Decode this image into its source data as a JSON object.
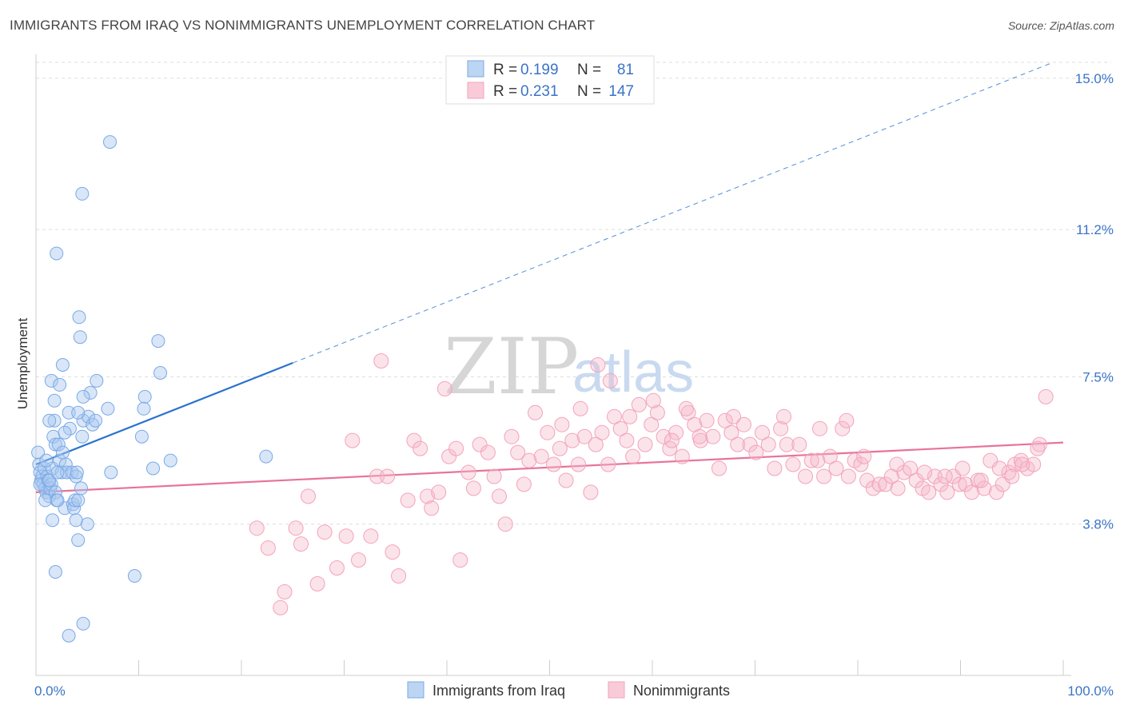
{
  "title": "IMMIGRANTS FROM IRAQ VS NONIMMIGRANTS UNEMPLOYMENT CORRELATION CHART",
  "source": "Source: ZipAtlas.com",
  "watermark": {
    "zip": "ZIP",
    "atlas": "atlas"
  },
  "legend": {
    "r_label": "R =",
    "n_label": "N =",
    "rows": [
      {
        "r": "0.199",
        "n": "81",
        "color": "#a9c8ef"
      },
      {
        "r": "0.231",
        "n": "147",
        "color": "#f6b9cb"
      }
    ]
  },
  "chart_data": {
    "type": "scatter",
    "title": "IMMIGRANTS FROM IRAQ VS NONIMMIGRANTS UNEMPLOYMENT CORRELATION CHART",
    "xlabel": "",
    "ylabel": "Unemployment",
    "xlim": [
      0,
      100
    ],
    "ylim": [
      0,
      15.4
    ],
    "x_tick_labels": {
      "min": "0.0%",
      "max": "100.0%"
    },
    "y_ticks": [
      {
        "value": 3.8,
        "label": "3.8%"
      },
      {
        "value": 7.5,
        "label": "7.5%"
      },
      {
        "value": 11.2,
        "label": "11.2%"
      },
      {
        "value": 15.0,
        "label": "15.0%"
      }
    ],
    "grid": true,
    "legend_position": "top-center",
    "series": [
      {
        "name": "Immigrants from Iraq",
        "color": "#7aa9e6",
        "line_color": "#2a72cf",
        "trend": {
          "x0": 0,
          "y0": 5.3,
          "x1": 25,
          "y1": 7.85,
          "extend_to_x": 100,
          "dashed_extension": true
        },
        "points": [
          [
            0.2,
            5.6
          ],
          [
            0.3,
            5.3
          ],
          [
            0.4,
            5.1
          ],
          [
            0.5,
            4.9
          ],
          [
            0.6,
            5.0
          ],
          [
            0.7,
            4.8
          ],
          [
            0.8,
            5.2
          ],
          [
            0.9,
            4.7
          ],
          [
            1.0,
            4.6
          ],
          [
            0.4,
            4.8
          ],
          [
            1.1,
            5.0
          ],
          [
            1.2,
            4.9
          ],
          [
            1.3,
            4.5
          ],
          [
            1.4,
            4.7
          ],
          [
            1.5,
            4.8
          ],
          [
            1.6,
            5.2
          ],
          [
            1.7,
            6.0
          ],
          [
            1.8,
            6.4
          ],
          [
            1.9,
            4.6
          ],
          [
            2.0,
            4.4
          ],
          [
            0.9,
            4.4
          ],
          [
            1.3,
            6.4
          ],
          [
            1.9,
            5.8
          ],
          [
            2.2,
            5.8
          ],
          [
            2.3,
            5.4
          ],
          [
            2.5,
            5.1
          ],
          [
            2.6,
            5.6
          ],
          [
            2.8,
            4.2
          ],
          [
            2.9,
            5.3
          ],
          [
            3.0,
            5.1
          ],
          [
            3.2,
            6.6
          ],
          [
            3.3,
            6.2
          ],
          [
            3.5,
            5.1
          ],
          [
            3.6,
            4.3
          ],
          [
            3.7,
            4.2
          ],
          [
            3.8,
            4.4
          ],
          [
            3.9,
            5.0
          ],
          [
            4.0,
            5.1
          ],
          [
            4.1,
            4.4
          ],
          [
            4.4,
            4.7
          ],
          [
            4.5,
            6.0
          ],
          [
            4.6,
            6.4
          ],
          [
            5.0,
            3.8
          ],
          [
            5.1,
            6.5
          ],
          [
            4.2,
            9.0
          ],
          [
            4.3,
            8.5
          ],
          [
            4.1,
            3.4
          ],
          [
            5.3,
            7.1
          ],
          [
            4.5,
            12.1
          ],
          [
            2.0,
            10.6
          ],
          [
            7.2,
            13.4
          ],
          [
            1.5,
            7.4
          ],
          [
            2.3,
            7.3
          ],
          [
            2.6,
            7.8
          ],
          [
            1.8,
            6.9
          ],
          [
            3.9,
            3.9
          ],
          [
            2.1,
            4.4
          ],
          [
            1.6,
            3.9
          ],
          [
            1.3,
            4.9
          ],
          [
            1.9,
            2.6
          ],
          [
            2.1,
            5.1
          ],
          [
            4.1,
            6.6
          ],
          [
            4.6,
            7.0
          ],
          [
            5.5,
            6.3
          ],
          [
            5.8,
            6.4
          ],
          [
            5.9,
            7.4
          ],
          [
            7.0,
            6.7
          ],
          [
            7.3,
            5.1
          ],
          [
            10.3,
            6.0
          ],
          [
            10.6,
            7.0
          ],
          [
            10.5,
            6.7
          ],
          [
            11.9,
            8.4
          ],
          [
            12.1,
            7.6
          ],
          [
            11.4,
            5.2
          ],
          [
            13.1,
            5.4
          ],
          [
            22.4,
            5.5
          ],
          [
            9.6,
            2.5
          ],
          [
            4.6,
            1.3
          ],
          [
            3.2,
            1.0
          ],
          [
            2.8,
            6.1
          ],
          [
            1.0,
            5.4
          ]
        ]
      },
      {
        "name": "Nonimmigrants",
        "color": "#f3a3bc",
        "line_color": "#e8739a",
        "trend": {
          "x0": 0,
          "y0": 4.6,
          "x1": 100,
          "y1": 5.85
        },
        "points": [
          [
            21.5,
            3.7
          ],
          [
            22.6,
            3.2
          ],
          [
            23.8,
            1.7
          ],
          [
            24.2,
            2.1
          ],
          [
            25.3,
            3.7
          ],
          [
            25.8,
            3.3
          ],
          [
            26.5,
            4.5
          ],
          [
            27.4,
            2.3
          ],
          [
            28.1,
            3.6
          ],
          [
            29.3,
            2.7
          ],
          [
            30.2,
            3.5
          ],
          [
            30.8,
            5.9
          ],
          [
            31.4,
            2.9
          ],
          [
            32.6,
            3.5
          ],
          [
            33.2,
            5.0
          ],
          [
            34.2,
            5.0
          ],
          [
            34.7,
            3.1
          ],
          [
            35.3,
            2.5
          ],
          [
            36.2,
            4.4
          ],
          [
            36.8,
            5.9
          ],
          [
            37.4,
            5.7
          ],
          [
            38.1,
            4.5
          ],
          [
            38.5,
            4.2
          ],
          [
            39.2,
            4.6
          ],
          [
            40.2,
            5.5
          ],
          [
            40.9,
            5.7
          ],
          [
            41.3,
            2.9
          ],
          [
            42.1,
            5.1
          ],
          [
            42.6,
            4.7
          ],
          [
            43.2,
            5.8
          ],
          [
            44.0,
            5.6
          ],
          [
            44.6,
            5.0
          ],
          [
            45.1,
            4.5
          ],
          [
            45.7,
            3.8
          ],
          [
            46.3,
            6.0
          ],
          [
            46.9,
            5.6
          ],
          [
            47.5,
            4.8
          ],
          [
            48.0,
            5.4
          ],
          [
            48.6,
            6.6
          ],
          [
            49.2,
            5.5
          ],
          [
            49.8,
            6.1
          ],
          [
            50.4,
            5.3
          ],
          [
            51.0,
            5.7
          ],
          [
            51.6,
            4.9
          ],
          [
            52.2,
            5.9
          ],
          [
            52.8,
            5.3
          ],
          [
            53.4,
            6.0
          ],
          [
            54.0,
            4.6
          ],
          [
            54.5,
            5.8
          ],
          [
            55.1,
            6.1
          ],
          [
            55.7,
            5.3
          ],
          [
            56.3,
            6.5
          ],
          [
            56.9,
            6.2
          ],
          [
            57.5,
            5.9
          ],
          [
            58.1,
            5.5
          ],
          [
            58.7,
            6.8
          ],
          [
            59.3,
            5.8
          ],
          [
            59.9,
            6.3
          ],
          [
            60.5,
            6.6
          ],
          [
            61.1,
            6.0
          ],
          [
            61.7,
            5.7
          ],
          [
            62.3,
            6.1
          ],
          [
            62.9,
            5.5
          ],
          [
            63.5,
            6.6
          ],
          [
            64.1,
            6.3
          ],
          [
            64.7,
            5.9
          ],
          [
            65.3,
            6.4
          ],
          [
            65.9,
            6.0
          ],
          [
            66.5,
            5.2
          ],
          [
            67.1,
            6.4
          ],
          [
            67.7,
            6.1
          ],
          [
            68.3,
            5.8
          ],
          [
            68.9,
            6.3
          ],
          [
            69.5,
            5.8
          ],
          [
            70.1,
            5.6
          ],
          [
            70.7,
            6.1
          ],
          [
            71.3,
            5.8
          ],
          [
            71.9,
            5.2
          ],
          [
            72.5,
            6.2
          ],
          [
            73.1,
            5.8
          ],
          [
            73.7,
            5.3
          ],
          [
            74.3,
            5.8
          ],
          [
            74.9,
            5.0
          ],
          [
            75.5,
            5.4
          ],
          [
            76.1,
            5.4
          ],
          [
            76.7,
            5.0
          ],
          [
            77.3,
            5.5
          ],
          [
            77.9,
            5.2
          ],
          [
            78.5,
            6.2
          ],
          [
            79.1,
            5.0
          ],
          [
            79.7,
            5.4
          ],
          [
            80.3,
            5.3
          ],
          [
            80.9,
            4.9
          ],
          [
            81.5,
            4.7
          ],
          [
            82.1,
            4.8
          ],
          [
            82.7,
            4.8
          ],
          [
            83.3,
            5.0
          ],
          [
            83.9,
            4.7
          ],
          [
            84.5,
            5.1
          ],
          [
            85.1,
            5.2
          ],
          [
            85.7,
            4.9
          ],
          [
            86.3,
            4.7
          ],
          [
            86.9,
            4.6
          ],
          [
            87.5,
            5.0
          ],
          [
            88.1,
            4.8
          ],
          [
            88.7,
            4.6
          ],
          [
            89.3,
            5.0
          ],
          [
            89.9,
            4.8
          ],
          [
            90.5,
            4.8
          ],
          [
            91.1,
            4.6
          ],
          [
            91.7,
            4.9
          ],
          [
            92.3,
            4.7
          ],
          [
            92.9,
            5.4
          ],
          [
            93.5,
            4.6
          ],
          [
            94.1,
            4.8
          ],
          [
            94.7,
            5.1
          ],
          [
            95.3,
            5.3
          ],
          [
            95.9,
            5.4
          ],
          [
            96.5,
            5.2
          ],
          [
            97.1,
            5.3
          ],
          [
            97.7,
            5.8
          ],
          [
            98.3,
            7.0
          ],
          [
            39.8,
            7.2
          ],
          [
            33.6,
            7.9
          ],
          [
            54.7,
            7.8
          ],
          [
            51.2,
            6.3
          ],
          [
            60.1,
            6.9
          ],
          [
            63.3,
            6.7
          ],
          [
            67.9,
            6.5
          ],
          [
            72.8,
            6.5
          ],
          [
            76.3,
            6.2
          ],
          [
            78.9,
            6.4
          ],
          [
            80.6,
            5.5
          ],
          [
            83.8,
            5.3
          ],
          [
            86.5,
            5.1
          ],
          [
            88.5,
            5.0
          ],
          [
            90.2,
            5.2
          ],
          [
            92.0,
            4.9
          ],
          [
            93.8,
            5.2
          ],
          [
            95.0,
            5.0
          ],
          [
            96.0,
            5.3
          ],
          [
            97.5,
            5.7
          ],
          [
            53.0,
            6.7
          ],
          [
            55.9,
            7.4
          ],
          [
            57.8,
            6.5
          ],
          [
            61.9,
            5.9
          ],
          [
            64.6,
            6.0
          ]
        ]
      }
    ]
  }
}
